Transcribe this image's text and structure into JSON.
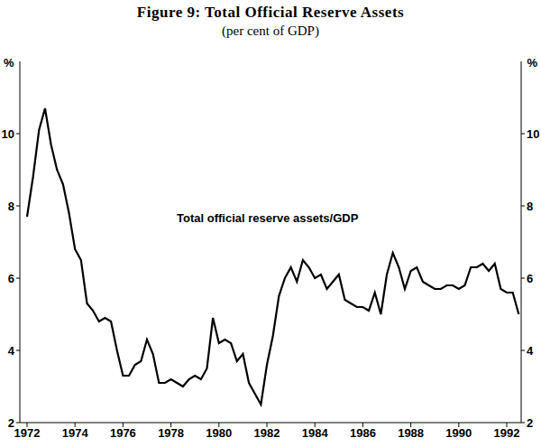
{
  "chart_data": {
    "type": "line",
    "title": "Figure 9: Total Official Reserve Assets",
    "subtitle": "(per cent of GDP)",
    "y_label": "%",
    "y2_label": "%",
    "x": [
      1972,
      1972.25,
      1972.5,
      1972.75,
      1973,
      1973.25,
      1973.5,
      1973.75,
      1974,
      1974.25,
      1974.5,
      1974.75,
      1975,
      1975.25,
      1975.5,
      1975.75,
      1976,
      1976.25,
      1976.5,
      1976.75,
      1977,
      1977.25,
      1977.5,
      1977.75,
      1978,
      1978.25,
      1978.5,
      1978.75,
      1979,
      1979.25,
      1979.5,
      1979.75,
      1980,
      1980.25,
      1980.5,
      1980.75,
      1981,
      1981.25,
      1981.5,
      1981.75,
      1982,
      1982.25,
      1982.5,
      1982.75,
      1983,
      1983.25,
      1983.5,
      1983.75,
      1984,
      1984.25,
      1984.5,
      1984.75,
      1985,
      1985.25,
      1985.5,
      1985.75,
      1986,
      1986.25,
      1986.5,
      1986.75,
      1987,
      1987.25,
      1987.5,
      1987.75,
      1988,
      1988.25,
      1988.5,
      1988.75,
      1989,
      1989.25,
      1989.5,
      1989.75,
      1990,
      1990.25,
      1990.5,
      1990.75,
      1991,
      1991.25,
      1991.5,
      1991.75,
      1992,
      1992.25,
      1992.5
    ],
    "series": [
      {
        "name": "Total official reserve assets/GDP",
        "color": "#000000",
        "values": [
          7.7,
          8.8,
          10.1,
          10.7,
          9.7,
          9.0,
          8.6,
          7.8,
          6.8,
          6.5,
          5.3,
          5.1,
          4.8,
          4.9,
          4.8,
          4.0,
          3.3,
          3.3,
          3.6,
          3.7,
          4.3,
          3.9,
          3.1,
          3.1,
          3.2,
          3.1,
          3.0,
          3.2,
          3.3,
          3.2,
          3.5,
          4.9,
          4.2,
          4.3,
          4.2,
          3.7,
          3.9,
          3.1,
          2.8,
          2.5,
          3.6,
          4.4,
          5.5,
          6.0,
          6.3,
          5.9,
          6.5,
          6.3,
          6.0,
          6.1,
          5.7,
          5.9,
          6.1,
          5.4,
          5.3,
          5.2,
          5.2,
          5.1,
          5.6,
          5.0,
          6.1,
          6.7,
          6.3,
          5.7,
          6.2,
          6.3,
          5.9,
          5.8,
          5.7,
          5.7,
          5.8,
          5.8,
          5.7,
          5.8,
          6.3,
          6.3,
          6.4,
          6.2,
          6.4,
          5.7,
          5.6,
          5.6,
          5.0
        ]
      }
    ],
    "xlim": [
      1971.7,
      1992.6
    ],
    "xticks": [
      1972,
      1974,
      1976,
      1978,
      1980,
      1982,
      1984,
      1986,
      1988,
      1990,
      1992
    ],
    "ylim": [
      2,
      12
    ],
    "yticks": [
      2,
      4,
      6,
      8,
      10
    ],
    "y2lim": [
      2,
      12
    ],
    "y2ticks": [
      2,
      4,
      6,
      8,
      10
    ]
  }
}
